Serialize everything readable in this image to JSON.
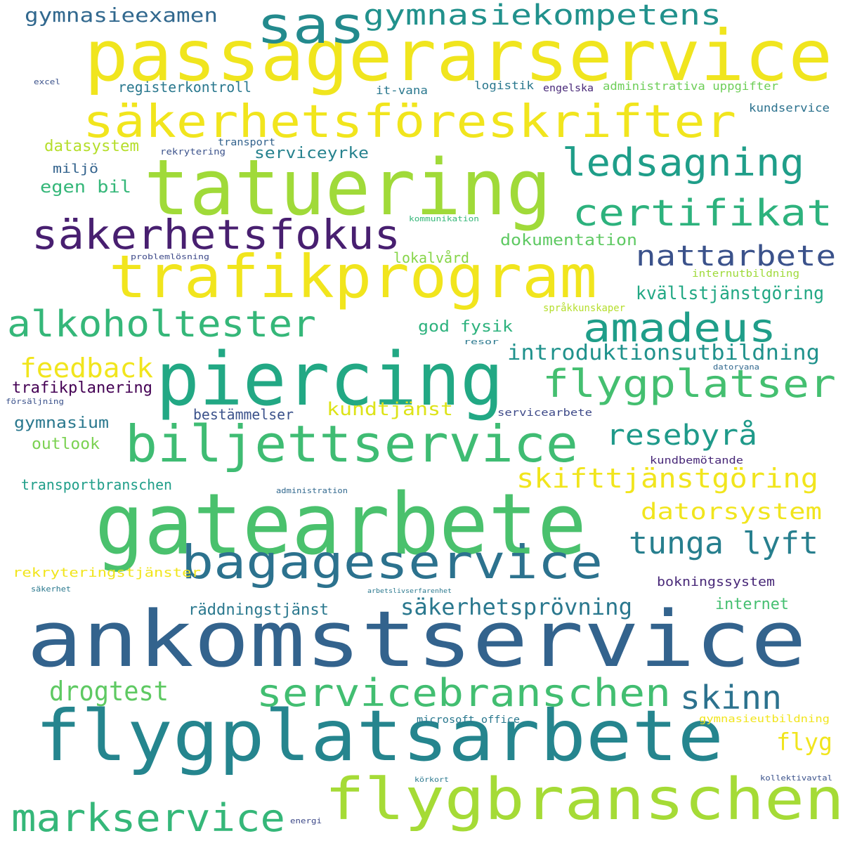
{
  "words": [
    {
      "text": "passagerarservice",
      "color": "#f0e51e"
    },
    {
      "text": "sas",
      "color": "#238a8d"
    },
    {
      "text": "gymnasiekompetens",
      "color": "#21918c"
    },
    {
      "text": "gymnasieexamen",
      "color": "#31688e"
    },
    {
      "text": "säkerhetsföreskrifter",
      "color": "#f1e51d"
    },
    {
      "text": "tatuering",
      "color": "#a0da39"
    },
    {
      "text": "ledsagning",
      "color": "#1f9e89"
    },
    {
      "text": "certifikat",
      "color": "#2db27d"
    },
    {
      "text": "säkerhetsfokus",
      "color": "#481f70"
    },
    {
      "text": "trafikprogram",
      "color": "#f1e51d"
    },
    {
      "text": "nattarbete",
      "color": "#3b528b"
    },
    {
      "text": "alkoholtester",
      "color": "#35b779"
    },
    {
      "text": "amadeus",
      "color": "#1f9e89"
    },
    {
      "text": "piercing",
      "color": "#22a884"
    },
    {
      "text": "flygplatser",
      "color": "#44bf70"
    },
    {
      "text": "biljettservice",
      "color": "#3fbc73"
    },
    {
      "text": "resebyrå",
      "color": "#1f9a8a"
    },
    {
      "text": "gatearbete",
      "color": "#4ac16d"
    },
    {
      "text": "bagageservice",
      "color": "#2c728e"
    },
    {
      "text": "tunga lyft",
      "color": "#277f8e"
    },
    {
      "text": "ankomstservice",
      "color": "#33638d"
    },
    {
      "text": "flygplatsarbete",
      "color": "#25858e"
    },
    {
      "text": "servicebranschen",
      "color": "#42be71"
    },
    {
      "text": "skinn",
      "color": "#2c728e"
    },
    {
      "text": "flygbranschen",
      "color": "#a5db36"
    },
    {
      "text": "markservice",
      "color": "#35b779"
    },
    {
      "text": "drogtest",
      "color": "#5ec962"
    },
    {
      "text": "säkerhetsprövning",
      "color": "#2a788e"
    },
    {
      "text": "skifttjänstgöring",
      "color": "#f1e51d"
    },
    {
      "text": "datorsystem",
      "color": "#f1e51d"
    },
    {
      "text": "feedback",
      "color": "#f1e51d"
    },
    {
      "text": "kundtjänst",
      "color": "#dde318"
    },
    {
      "text": "introduktionsutbildning",
      "color": "#20928c"
    },
    {
      "text": "kvällstjänstgöring",
      "color": "#22a884"
    },
    {
      "text": "flyg",
      "color": "#f1e51d"
    },
    {
      "text": "trafikplanering",
      "color": "#440154"
    },
    {
      "text": "gymnasium",
      "color": "#2a788e"
    },
    {
      "text": "outlook",
      "color": "#7ad151"
    },
    {
      "text": "transportbranschen",
      "color": "#1f9e89"
    },
    {
      "text": "datasystem",
      "color": "#b5de2b"
    },
    {
      "text": "serviceyrke",
      "color": "#26828e"
    },
    {
      "text": "egen bil",
      "color": "#35b779"
    },
    {
      "text": "miljö",
      "color": "#33638d"
    },
    {
      "text": "registerkontroll",
      "color": "#2a788e"
    },
    {
      "text": "dokumentation",
      "color": "#5ec962"
    },
    {
      "text": "lokalvård",
      "color": "#86d549"
    },
    {
      "text": "god fysik",
      "color": "#2db27d"
    },
    {
      "text": "bestämmelser",
      "color": "#3b528b"
    },
    {
      "text": "rekryteringstjänster",
      "color": "#f1e51d"
    },
    {
      "text": "räddningstjänst",
      "color": "#2a788e"
    },
    {
      "text": "bokningssystem",
      "color": "#482878"
    },
    {
      "text": "internet",
      "color": "#44bf70"
    },
    {
      "text": "microsoft office",
      "color": "#2a788e"
    },
    {
      "text": "gymnasieutbildning",
      "color": "#f1e51d"
    },
    {
      "text": "logistik",
      "color": "#2a788e"
    },
    {
      "text": "engelska",
      "color": "#482878"
    },
    {
      "text": "administrativa uppgifter",
      "color": "#6ece58"
    },
    {
      "text": "kundservice",
      "color": "#2c728e"
    },
    {
      "text": "it-vana",
      "color": "#2a788e"
    },
    {
      "text": "excel",
      "color": "#3b528b"
    },
    {
      "text": "transport",
      "color": "#33638d"
    },
    {
      "text": "rekrytering",
      "color": "#3b528b"
    },
    {
      "text": "kommunikation",
      "color": "#35b779"
    },
    {
      "text": "problemlösning",
      "color": "#3e4a89"
    },
    {
      "text": "internutbildning",
      "color": "#9fda3a"
    },
    {
      "text": "språkkunskaper",
      "color": "#b5de2b"
    },
    {
      "text": "resor",
      "color": "#2a788e"
    },
    {
      "text": "datorvana",
      "color": "#31688e"
    },
    {
      "text": "försäljning",
      "color": "#3b528b"
    },
    {
      "text": "servicearbete",
      "color": "#3e4a89"
    },
    {
      "text": "kundbemötande",
      "color": "#482878"
    },
    {
      "text": "administration",
      "color": "#31688e"
    },
    {
      "text": "säkerhet",
      "color": "#2a788e"
    },
    {
      "text": "arbetslivserfarenhet",
      "color": "#2a788e"
    },
    {
      "text": "körkort",
      "color": "#2a788e"
    },
    {
      "text": "kollektivavtal",
      "color": "#3b528b"
    },
    {
      "text": "energi",
      "color": "#3e4a89"
    }
  ]
}
